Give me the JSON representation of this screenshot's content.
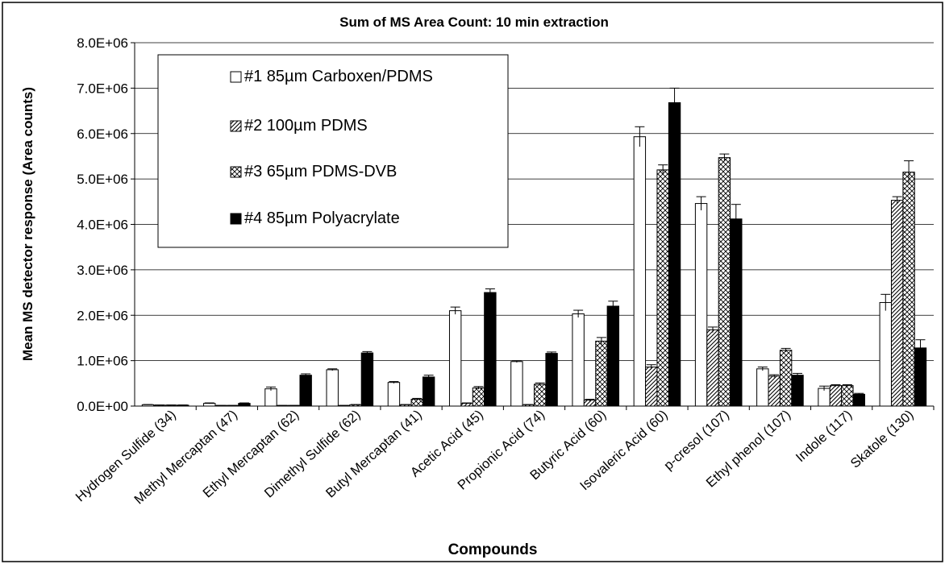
{
  "chart_data": {
    "type": "bar",
    "title": "Sum of MS Area Count: 10 min extraction",
    "xlabel": "Compounds",
    "ylabel": "Mean MS detector response (Area counts)",
    "ylim": [
      0,
      8000000
    ],
    "yticks": [
      0,
      1000000,
      2000000,
      3000000,
      4000000,
      5000000,
      6000000,
      7000000,
      8000000
    ],
    "ytick_labels": [
      "0.0E+00",
      "1.0E+06",
      "2.0E+06",
      "3.0E+06",
      "4.0E+06",
      "5.0E+06",
      "6.0E+06",
      "7.0E+06",
      "8.0E+06"
    ],
    "grid": "horizontal",
    "legend": "top-left, inside plot",
    "categories": [
      "Hydrogen Sulfide (34)",
      "Methyl Mercaptan (47)",
      "Ethyl Mercaptan (62)",
      "Dimethyl Sulfide (62)",
      "Butyl Mercaptan (41)",
      "Acetic Acid (45)",
      "Propionic Acid (74)",
      "Butyric Acid (60)",
      "Isovaleric Acid (60)",
      "p-cresol (107)",
      "Ethyl phenol (107)",
      "Indole (117)",
      "Skatole (130)"
    ],
    "series": [
      {
        "name": "#1 85µm Carboxen/PDMS",
        "pattern": "white",
        "values": [
          30000,
          60000,
          380000,
          800000,
          520000,
          2100000,
          980000,
          2030000,
          5930000,
          4460000,
          820000,
          390000,
          2280000
        ],
        "errors": [
          5000,
          10000,
          40000,
          20000,
          20000,
          80000,
          20000,
          80000,
          220000,
          150000,
          40000,
          50000,
          180000
        ]
      },
      {
        "name": "#2  100µm PDMS",
        "pattern": "diagonal",
        "values": [
          20000,
          10000,
          10000,
          10000,
          30000,
          60000,
          30000,
          130000,
          860000,
          1680000,
          660000,
          450000,
          4530000
        ],
        "errors": [
          5000,
          5000,
          5000,
          5000,
          5000,
          10000,
          5000,
          20000,
          50000,
          60000,
          30000,
          20000,
          80000
        ]
      },
      {
        "name": "#3 65µm PDMS-DVB",
        "pattern": "crosshatch",
        "values": [
          20000,
          10000,
          10000,
          30000,
          150000,
          400000,
          480000,
          1430000,
          5200000,
          5470000,
          1230000,
          450000,
          5150000
        ],
        "errors": [
          5000,
          5000,
          5000,
          5000,
          20000,
          30000,
          30000,
          80000,
          110000,
          80000,
          40000,
          20000,
          250000
        ]
      },
      {
        "name": "#4 85µm Polyacrylate",
        "pattern": "black",
        "values": [
          20000,
          60000,
          680000,
          1170000,
          640000,
          2500000,
          1160000,
          2200000,
          6680000,
          4120000,
          680000,
          260000,
          1280000
        ],
        "errors": [
          5000,
          10000,
          30000,
          30000,
          40000,
          80000,
          30000,
          110000,
          320000,
          320000,
          40000,
          20000,
          180000
        ]
      }
    ]
  }
}
